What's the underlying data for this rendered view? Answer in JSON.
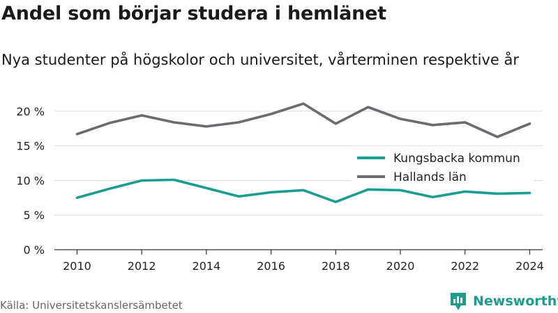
{
  "header": {
    "title": "Andel som börjar studera i hemlänet",
    "subtitle": "Nya studenter på högskolor och universitet, vårterminen respektive år"
  },
  "footer": {
    "source": "Källa: Universitetskanslersämbetet",
    "brand": "Newsworthy",
    "brand_icon": "bar-chart-logo-icon",
    "brand_color": "#1f9b8e"
  },
  "chart_data": {
    "type": "line",
    "x": [
      2010,
      2011,
      2012,
      2013,
      2014,
      2015,
      2016,
      2017,
      2018,
      2019,
      2020,
      2021,
      2022,
      2023,
      2024
    ],
    "x_ticks": [
      2010,
      2012,
      2014,
      2016,
      2018,
      2020,
      2022,
      2024
    ],
    "x_tick_labels": [
      "2010",
      "2012",
      "2014",
      "2016",
      "2018",
      "2020",
      "2022",
      "2024"
    ],
    "y_ticks": [
      0,
      5,
      10,
      15,
      20
    ],
    "y_tick_labels": [
      "0 %",
      "5 %",
      "10 %",
      "15 %",
      "20 %"
    ],
    "xlim": [
      2009.3,
      2024.4
    ],
    "ylim": [
      0,
      21.5
    ],
    "grid": true,
    "legend_position": "right",
    "series": [
      {
        "name": "Kungsbacka kommun",
        "color": "#1a9e93",
        "values": [
          7.5,
          8.8,
          10.0,
          10.1,
          8.9,
          7.7,
          8.3,
          8.6,
          6.9,
          8.7,
          8.6,
          7.6,
          8.4,
          8.1,
          8.2
        ]
      },
      {
        "name": "Hallands län",
        "color": "#6b6b70",
        "values": [
          16.7,
          18.3,
          19.4,
          18.4,
          17.8,
          18.4,
          19.6,
          21.1,
          18.2,
          20.6,
          18.9,
          18.0,
          18.4,
          16.3,
          18.2
        ]
      }
    ]
  }
}
